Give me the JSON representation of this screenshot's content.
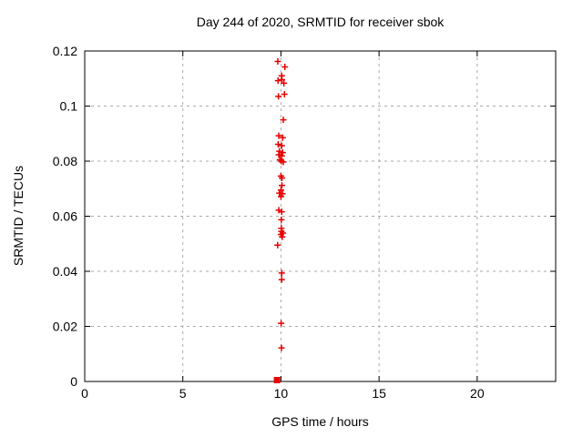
{
  "chart_data": {
    "type": "scatter",
    "title": "Day 244 of 2020, SRMTID for receiver sbok",
    "xlabel": "GPS time / hours",
    "ylabel": "SRMTID / TECUs",
    "xlim": [
      0,
      24
    ],
    "ylim": [
      0,
      0.12
    ],
    "xticks": [
      0,
      5,
      10,
      15,
      20
    ],
    "xtick_labels": [
      "0",
      "5",
      "10",
      "15",
      "20"
    ],
    "yticks": [
      0,
      0.02,
      0.04,
      0.06,
      0.08,
      0.1,
      0.12
    ],
    "ytick_labels": [
      "0",
      "0.02",
      "0.04",
      "0.06",
      "0.08",
      "0.1",
      "0.12"
    ],
    "grid": true,
    "legend": "none",
    "grid_color": "#aaaaaa",
    "axis_color": "#000000",
    "text_color": "#000000",
    "series": [
      {
        "name": "srmtid-points",
        "marker": "plus",
        "color": "#e60000",
        "points": [
          [
            9.84,
            0.1162
          ],
          [
            10.2,
            0.1142
          ],
          [
            10.04,
            0.111
          ],
          [
            9.85,
            0.1092
          ],
          [
            10.05,
            0.1096
          ],
          [
            10.15,
            0.1083
          ],
          [
            9.87,
            0.1035
          ],
          [
            10.18,
            0.1043
          ],
          [
            10.12,
            0.095
          ],
          [
            9.89,
            0.0892
          ],
          [
            10.09,
            0.0885
          ],
          [
            9.86,
            0.0861
          ],
          [
            10.04,
            0.0856
          ],
          [
            9.92,
            0.0836
          ],
          [
            10.09,
            0.0831
          ],
          [
            9.89,
            0.0823
          ],
          [
            10.04,
            0.0819
          ],
          [
            9.95,
            0.0805
          ],
          [
            10.02,
            0.08
          ],
          [
            10.12,
            0.0797
          ],
          [
            10.0,
            0.0746
          ],
          [
            10.05,
            0.0739
          ],
          [
            10.05,
            0.0712
          ],
          [
            10.0,
            0.0695
          ],
          [
            9.92,
            0.0684
          ],
          [
            10.08,
            0.0682
          ],
          [
            10.0,
            0.0671
          ],
          [
            9.89,
            0.0622
          ],
          [
            10.04,
            0.0616
          ],
          [
            10.02,
            0.0587
          ],
          [
            10.02,
            0.0556
          ],
          [
            10.02,
            0.0545
          ],
          [
            10.1,
            0.0539
          ],
          [
            10.0,
            0.0534
          ],
          [
            10.06,
            0.0525
          ],
          [
            9.83,
            0.0495
          ],
          [
            10.04,
            0.0394
          ],
          [
            10.04,
            0.037
          ],
          [
            10.01,
            0.0211
          ],
          [
            10.03,
            0.0122
          ]
        ]
      },
      {
        "name": "zero-flag",
        "marker": "filled-square",
        "color": "#e60000",
        "points": [
          [
            9.8,
            0.0
          ]
        ]
      }
    ]
  }
}
